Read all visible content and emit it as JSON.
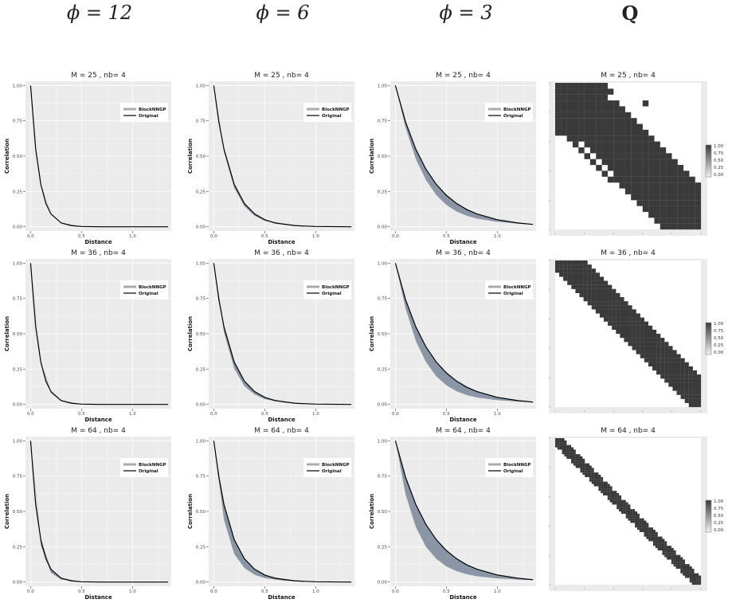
{
  "column_headers": [
    {
      "label": "ϕ = 12"
    },
    {
      "label": "ϕ = 6"
    },
    {
      "label": "ϕ = 3"
    },
    {
      "label": "Q"
    }
  ],
  "colors": {
    "panel_bg": "#ebebeb",
    "grid": "#ffffff",
    "original": "#000000",
    "blocknngp_band": "#8a95a5",
    "blocknngp_legend": "#aaaaaa",
    "matrix_cell": "#3a3a3a"
  },
  "chart_data": [
    {
      "type": "line",
      "title": "M =  25 , nb= 4",
      "phi": 12,
      "row": 0,
      "col": 0,
      "xlabel": "Distance",
      "ylabel": "Correlation",
      "xlim": [
        -0.05,
        1.38
      ],
      "ylim": [
        -0.03,
        1.03
      ],
      "xticks": [
        "0.0",
        "0.5",
        "1.0"
      ],
      "yticks": [
        "0.00",
        "0.25",
        "0.50",
        "0.75",
        "1.00"
      ],
      "legend": [
        "BlockNNGP",
        "Original"
      ],
      "legend_position": "top-right",
      "series": [
        {
          "name": "Original",
          "x": [
            0,
            0.05,
            0.1,
            0.15,
            0.2,
            0.3,
            0.4,
            0.5,
            0.7,
            1.0,
            1.35
          ],
          "y": [
            1,
            0.549,
            0.301,
            0.165,
            0.091,
            0.027,
            0.008,
            0.002,
            0.0,
            0.0,
            0.0
          ]
        },
        {
          "name": "BlockNNGP",
          "x": [
            0,
            0.1,
            0.2,
            0.3,
            0.5,
            1.0,
            1.35
          ],
          "y_low": [
            1,
            0.295,
            0.085,
            0.024,
            0.002,
            0.0,
            0.0
          ],
          "y_high": [
            1,
            0.302,
            0.092,
            0.028,
            0.003,
            0.0,
            0.0
          ]
        }
      ]
    },
    {
      "type": "line",
      "title": "M =  25 , nb= 4",
      "phi": 6,
      "row": 0,
      "col": 1,
      "xlabel": "Distance",
      "ylabel": "Correlation",
      "xlim": [
        -0.05,
        1.38
      ],
      "ylim": [
        -0.03,
        1.03
      ],
      "xticks": [
        "0.0",
        "0.5",
        "1.0"
      ],
      "yticks": [
        "0.00",
        "0.25",
        "0.50",
        "0.75",
        "1.00"
      ],
      "legend": [
        "BlockNNGP",
        "Original"
      ],
      "legend_position": "top-right",
      "series": [
        {
          "name": "Original",
          "x": [
            0,
            0.05,
            0.1,
            0.2,
            0.3,
            0.4,
            0.5,
            0.6,
            0.8,
            1.0,
            1.35
          ],
          "y": [
            1,
            0.741,
            0.549,
            0.301,
            0.165,
            0.091,
            0.05,
            0.027,
            0.008,
            0.002,
            0.0
          ]
        },
        {
          "name": "BlockNNGP",
          "x": [
            0,
            0.1,
            0.2,
            0.3,
            0.4,
            0.5,
            0.7,
            1.0,
            1.35
          ],
          "y_low": [
            1,
            0.53,
            0.275,
            0.145,
            0.078,
            0.042,
            0.013,
            0.002,
            0.0
          ],
          "y_high": [
            1,
            0.55,
            0.303,
            0.167,
            0.092,
            0.051,
            0.016,
            0.003,
            0.0
          ]
        }
      ]
    },
    {
      "type": "line",
      "title": "M =  25 , nb= 4",
      "phi": 3,
      "row": 0,
      "col": 2,
      "xlabel": "Distance",
      "ylabel": "Correlation",
      "xlim": [
        -0.05,
        1.38
      ],
      "ylim": [
        -0.03,
        1.03
      ],
      "xticks": [
        "0.0",
        "0.5",
        "1.0"
      ],
      "yticks": [
        "0.00",
        "0.25",
        "0.50",
        "0.75",
        "1.00"
      ],
      "legend": [
        "BlockNNGP",
        "Original"
      ],
      "legend_position": "top-right",
      "series": [
        {
          "name": "Original",
          "x": [
            0,
            0.1,
            0.2,
            0.3,
            0.4,
            0.5,
            0.6,
            0.7,
            0.8,
            1.0,
            1.2,
            1.35
          ],
          "y": [
            1,
            0.741,
            0.549,
            0.407,
            0.301,
            0.223,
            0.165,
            0.122,
            0.091,
            0.05,
            0.027,
            0.017
          ]
        },
        {
          "name": "BlockNNGP",
          "x": [
            0,
            0.1,
            0.2,
            0.3,
            0.4,
            0.5,
            0.6,
            0.7,
            0.8,
            1.0,
            1.2,
            1.35
          ],
          "y_low": [
            1,
            0.7,
            0.48,
            0.33,
            0.225,
            0.155,
            0.108,
            0.078,
            0.058,
            0.035,
            0.022,
            0.015
          ],
          "y_high": [
            1,
            0.745,
            0.553,
            0.41,
            0.304,
            0.226,
            0.168,
            0.125,
            0.093,
            0.052,
            0.029,
            0.018
          ]
        }
      ]
    },
    {
      "type": "line",
      "title": "M =  36 , nb= 4",
      "phi": 12,
      "row": 1,
      "col": 0,
      "xlabel": "Distance",
      "ylabel": "Correlation",
      "xlim": [
        -0.05,
        1.38
      ],
      "ylim": [
        -0.03,
        1.03
      ],
      "xticks": [
        "0.0",
        "0.5",
        "1.0"
      ],
      "yticks": [
        "0.00",
        "0.25",
        "0.50",
        "0.75",
        "1.00"
      ],
      "legend": [
        "BlockNNGP",
        "Original"
      ],
      "legend_position": "top-right",
      "series": [
        {
          "name": "Original",
          "x": [
            0,
            0.05,
            0.1,
            0.15,
            0.2,
            0.3,
            0.4,
            0.5,
            0.7,
            1.0,
            1.35
          ],
          "y": [
            1,
            0.549,
            0.301,
            0.165,
            0.091,
            0.027,
            0.008,
            0.002,
            0.0,
            0.0,
            0.0
          ]
        },
        {
          "name": "BlockNNGP",
          "x": [
            0,
            0.1,
            0.2,
            0.3,
            0.5,
            1.0,
            1.35
          ],
          "y_low": [
            1,
            0.285,
            0.08,
            0.022,
            0.002,
            0.0,
            0.0
          ],
          "y_high": [
            1,
            0.302,
            0.092,
            0.028,
            0.003,
            0.0,
            0.0
          ]
        }
      ]
    },
    {
      "type": "line",
      "title": "M =  36 , nb= 4",
      "phi": 6,
      "row": 1,
      "col": 1,
      "xlabel": "Distance",
      "ylabel": "Correlation",
      "xlim": [
        -0.05,
        1.38
      ],
      "ylim": [
        -0.03,
        1.03
      ],
      "xticks": [
        "0.0",
        "0.5",
        "1.0"
      ],
      "yticks": [
        "0.00",
        "0.25",
        "0.50",
        "0.75",
        "1.00"
      ],
      "legend": [
        "BlockNNGP",
        "Original"
      ],
      "legend_position": "top-right",
      "series": [
        {
          "name": "Original",
          "x": [
            0,
            0.05,
            0.1,
            0.2,
            0.3,
            0.4,
            0.5,
            0.6,
            0.8,
            1.0,
            1.35
          ],
          "y": [
            1,
            0.741,
            0.549,
            0.301,
            0.165,
            0.091,
            0.05,
            0.027,
            0.008,
            0.002,
            0.0
          ]
        },
        {
          "name": "BlockNNGP",
          "x": [
            0,
            0.1,
            0.2,
            0.3,
            0.4,
            0.5,
            0.7,
            1.0,
            1.35
          ],
          "y_low": [
            1,
            0.51,
            0.255,
            0.13,
            0.07,
            0.038,
            0.012,
            0.002,
            0.0
          ],
          "y_high": [
            1,
            0.55,
            0.303,
            0.167,
            0.092,
            0.051,
            0.016,
            0.003,
            0.0
          ]
        }
      ]
    },
    {
      "type": "line",
      "title": "M =  36 , nb= 4",
      "phi": 3,
      "row": 1,
      "col": 2,
      "xlabel": "Distance",
      "ylabel": "Correlation",
      "xlim": [
        -0.05,
        1.38
      ],
      "ylim": [
        -0.03,
        1.03
      ],
      "xticks": [
        "0.0",
        "0.5",
        "1.0"
      ],
      "yticks": [
        "0.00",
        "0.25",
        "0.50",
        "0.75",
        "1.00"
      ],
      "legend": [
        "BlockNNGP",
        "Original"
      ],
      "legend_position": "top-right",
      "series": [
        {
          "name": "Original",
          "x": [
            0,
            0.1,
            0.2,
            0.3,
            0.4,
            0.5,
            0.6,
            0.7,
            0.8,
            1.0,
            1.2,
            1.35
          ],
          "y": [
            1,
            0.741,
            0.549,
            0.407,
            0.301,
            0.223,
            0.165,
            0.122,
            0.091,
            0.05,
            0.027,
            0.017
          ]
        },
        {
          "name": "BlockNNGP",
          "x": [
            0,
            0.1,
            0.2,
            0.3,
            0.4,
            0.5,
            0.6,
            0.7,
            0.8,
            1.0,
            1.2,
            1.35
          ],
          "y_low": [
            1,
            0.68,
            0.45,
            0.3,
            0.2,
            0.135,
            0.093,
            0.066,
            0.049,
            0.03,
            0.02,
            0.014
          ],
          "y_high": [
            1,
            0.745,
            0.553,
            0.41,
            0.304,
            0.226,
            0.168,
            0.125,
            0.093,
            0.052,
            0.029,
            0.018
          ]
        }
      ]
    },
    {
      "type": "line",
      "title": "M =  64 , nb= 4",
      "phi": 12,
      "row": 2,
      "col": 0,
      "xlabel": "Distance",
      "ylabel": "Correlation",
      "xlim": [
        -0.05,
        1.38
      ],
      "ylim": [
        -0.03,
        1.03
      ],
      "xticks": [
        "0.0",
        "0.5",
        "1.0"
      ],
      "yticks": [
        "0.00",
        "0.25",
        "0.50",
        "0.75",
        "1.00"
      ],
      "legend": [
        "BlockNNGP",
        "Original"
      ],
      "legend_position": "top-right",
      "series": [
        {
          "name": "Original",
          "x": [
            0,
            0.05,
            0.1,
            0.15,
            0.2,
            0.3,
            0.4,
            0.5,
            0.7,
            1.0,
            1.35
          ],
          "y": [
            1,
            0.549,
            0.301,
            0.165,
            0.091,
            0.027,
            0.008,
            0.002,
            0.0,
            0.0,
            0.0
          ]
        },
        {
          "name": "BlockNNGP",
          "x": [
            0,
            0.1,
            0.2,
            0.3,
            0.5,
            1.0,
            1.35
          ],
          "y_low": [
            1,
            0.26,
            0.065,
            0.018,
            0.001,
            0.0,
            0.0
          ],
          "y_high": [
            1,
            0.302,
            0.092,
            0.028,
            0.003,
            0.0,
            0.0
          ]
        }
      ]
    },
    {
      "type": "line",
      "title": "M =  64 , nb= 4",
      "phi": 6,
      "row": 2,
      "col": 1,
      "xlabel": "Distance",
      "ylabel": "Correlation",
      "xlim": [
        -0.05,
        1.38
      ],
      "ylim": [
        -0.03,
        1.03
      ],
      "xticks": [
        "0.0",
        "0.5",
        "1.0"
      ],
      "yticks": [
        "0.00",
        "0.25",
        "0.50",
        "0.75",
        "1.00"
      ],
      "legend": [
        "BlockNNGP",
        "Original"
      ],
      "legend_position": "top-right",
      "series": [
        {
          "name": "Original",
          "x": [
            0,
            0.05,
            0.1,
            0.2,
            0.3,
            0.4,
            0.5,
            0.6,
            0.8,
            1.0,
            1.35
          ],
          "y": [
            1,
            0.741,
            0.549,
            0.301,
            0.165,
            0.091,
            0.05,
            0.027,
            0.008,
            0.002,
            0.0
          ]
        },
        {
          "name": "BlockNNGP",
          "x": [
            0,
            0.1,
            0.2,
            0.3,
            0.4,
            0.5,
            0.7,
            1.0,
            1.35
          ],
          "y_low": [
            1,
            0.44,
            0.2,
            0.1,
            0.052,
            0.028,
            0.009,
            0.001,
            0.0
          ],
          "y_high": [
            1,
            0.55,
            0.303,
            0.167,
            0.092,
            0.051,
            0.016,
            0.003,
            0.0
          ]
        }
      ]
    },
    {
      "type": "line",
      "title": "M =  64 , nb= 4",
      "phi": 3,
      "row": 2,
      "col": 2,
      "xlabel": "Distance",
      "ylabel": "Correlation",
      "xlim": [
        -0.05,
        1.38
      ],
      "ylim": [
        -0.03,
        1.03
      ],
      "xticks": [
        "0.0",
        "0.5",
        "1.0"
      ],
      "yticks": [
        "0.00",
        "0.25",
        "0.50",
        "0.75",
        "1.00"
      ],
      "legend": [
        "BlockNNGP",
        "Original"
      ],
      "legend_position": "top-right",
      "series": [
        {
          "name": "Original",
          "x": [
            0,
            0.1,
            0.2,
            0.3,
            0.4,
            0.5,
            0.6,
            0.7,
            0.8,
            1.0,
            1.2,
            1.35
          ],
          "y": [
            1,
            0.741,
            0.549,
            0.407,
            0.301,
            0.223,
            0.165,
            0.122,
            0.091,
            0.05,
            0.027,
            0.017
          ]
        },
        {
          "name": "BlockNNGP",
          "x": [
            0,
            0.1,
            0.2,
            0.3,
            0.4,
            0.5,
            0.6,
            0.7,
            0.8,
            1.0,
            1.2,
            1.35
          ],
          "y_low": [
            1,
            0.62,
            0.39,
            0.25,
            0.165,
            0.11,
            0.077,
            0.055,
            0.041,
            0.026,
            0.018,
            0.013
          ],
          "y_high": [
            1,
            0.745,
            0.553,
            0.41,
            0.304,
            0.226,
            0.168,
            0.125,
            0.093,
            0.052,
            0.029,
            0.018
          ]
        }
      ]
    },
    {
      "type": "heatmap",
      "title": "M =  25 , nb= 4",
      "row": 0,
      "col": 3,
      "rows": 25,
      "cols": 25,
      "legend_ticks": [
        "1.00",
        "0.75",
        "0.50",
        "0.25",
        "0.00"
      ],
      "values": [
        "1111111110000000000000000",
        "1111111111000000000000000",
        "1111111110000000000000000",
        "1111111111100001000000000",
        "1111111111110000000000000",
        "1111111111111000000000000",
        "1111111111111100000000000",
        "1111111111111110000000000",
        "1111111111111111000000000",
        "0011111111111111100000000",
        "0001011111111111110000000",
        "0000101111111111111000000",
        "0000010111111111111100000",
        "0000001011111111111110000",
        "0000000101111111111111000",
        "0000000010111111111111100",
        "0000000001111111111111110",
        "0000000000011111111111111",
        "0000000000001111111111111",
        "0000000000000111111111111",
        "0000000000000011111111111",
        "0000000000000001111111111",
        "0000000000000000111111111",
        "0000000000000000011111111",
        "0000000000000000001111111"
      ]
    },
    {
      "type": "heatmap",
      "title": "M =  36 , nb= 4",
      "row": 1,
      "col": 3,
      "rows": 36,
      "cols": 36,
      "legend_ticks": [
        "1.00",
        "0.75",
        "0.50",
        "0.25",
        "0.00"
      ],
      "values": [
        "111111110000000000000000000000000000",
        "111111111000000000000000000000000000",
        "111111111100000000000000000000000000",
        "011111111110000000000000000000000000",
        "001111111111000000000000000000000000",
        "000111111111100000000000000000000000",
        "000011111111110000000000000000000000",
        "000001111111111000000000000000000000",
        "000000111111111100000000000000000000",
        "000000011111111110000000000000000000",
        "000000001111111111000000000000000000",
        "000000000111111111100000000000000000",
        "000000000011111111110000000000000000",
        "000000000001111111111000000000000000",
        "000000000000111111111100000000000000",
        "000000000000011111111110000000000000",
        "000000000000001111111111000000000000",
        "000000000000000111111111100000000000",
        "000000000000000011111111110000000000",
        "000000000000000001111111111000000000",
        "000000000000000000111111111100000000",
        "000000000000000000011111111110000000",
        "000000000000000000001111111111000000",
        "000000000000000000000111111111100000",
        "000000000000000000000011111111110000",
        "000000000000000000000001111111111000",
        "000000000000000000000000111111111100",
        "000000000000000000000000011111111110",
        "000000000000000000000000001111111111",
        "000000000000000000000000000111111111",
        "000000000000000000000000000011111111",
        "000000000000000000000000000001111111",
        "000000000000000000000000000000111111",
        "000000000000000000000000000000011111",
        "000000000000000000000000000000001111",
        "000000000000000000000000000000000111"
      ]
    },
    {
      "type": "heatmap",
      "title": "M =  64 , nb= 4",
      "row": 2,
      "col": 3,
      "rows": 64,
      "cols": 64,
      "legend_ticks": [
        "1.00",
        "0.75",
        "0.50",
        "0.25",
        "0.00"
      ],
      "band_half_width": 3
    }
  ]
}
